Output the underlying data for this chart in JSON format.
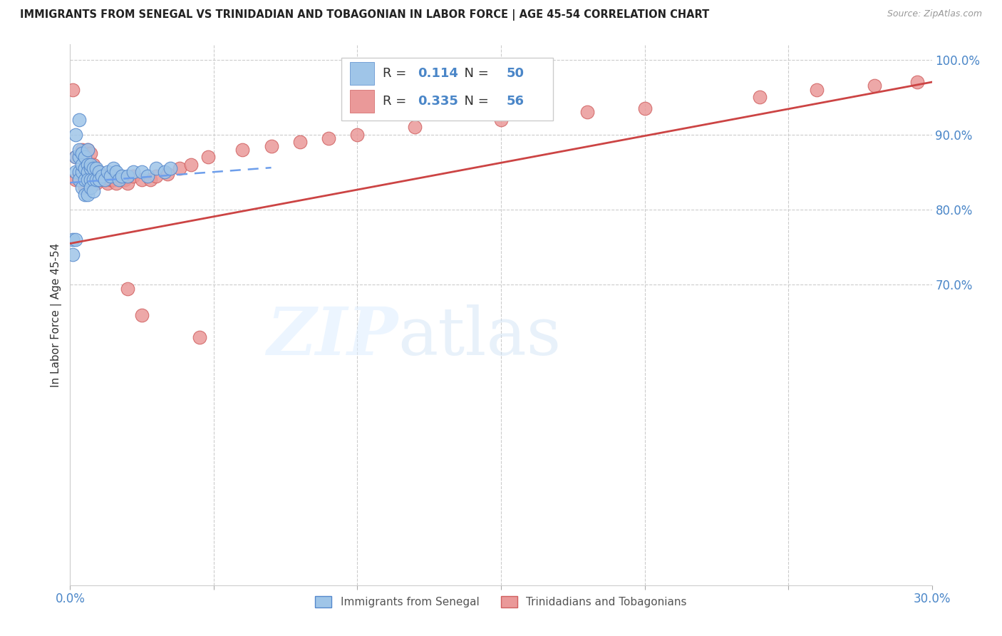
{
  "title": "IMMIGRANTS FROM SENEGAL VS TRINIDADIAN AND TOBAGONIAN IN LABOR FORCE | AGE 45-54 CORRELATION CHART",
  "source": "Source: ZipAtlas.com",
  "ylabel": "In Labor Force | Age 45-54",
  "xlim": [
    0.0,
    0.3
  ],
  "ylim": [
    0.3,
    1.02
  ],
  "xtick_positions": [
    0.0,
    0.05,
    0.1,
    0.15,
    0.2,
    0.25,
    0.3
  ],
  "xticklabels": [
    "0.0%",
    "",
    "",
    "",
    "",
    "",
    "30.0%"
  ],
  "ytick_positions": [
    0.3,
    0.4,
    0.5,
    0.6,
    0.7,
    0.8,
    0.9,
    1.0
  ],
  "yticklabels": [
    "",
    "",
    "",
    "",
    "70.0%",
    "80.0%",
    "90.0%",
    "100.0%"
  ],
  "legend_R_blue": "0.114",
  "legend_N_blue": "50",
  "legend_R_pink": "0.335",
  "legend_N_pink": "56",
  "blue_color": "#9fc5e8",
  "pink_color": "#ea9999",
  "trend_blue_color": "#6d9eeb",
  "trend_pink_color": "#e06666",
  "blue_line_color": "#6d9eeb",
  "pink_line_color": "#cc4444",
  "senegal_x": [
    0.001,
    0.001,
    0.002,
    0.002,
    0.002,
    0.002,
    0.003,
    0.003,
    0.003,
    0.003,
    0.003,
    0.004,
    0.004,
    0.004,
    0.004,
    0.005,
    0.005,
    0.005,
    0.005,
    0.006,
    0.006,
    0.006,
    0.006,
    0.006,
    0.007,
    0.007,
    0.007,
    0.007,
    0.008,
    0.008,
    0.008,
    0.009,
    0.009,
    0.01,
    0.01,
    0.011,
    0.012,
    0.013,
    0.014,
    0.015,
    0.016,
    0.017,
    0.018,
    0.02,
    0.022,
    0.025,
    0.027,
    0.03,
    0.033,
    0.035
  ],
  "senegal_y": [
    0.76,
    0.74,
    0.87,
    0.85,
    0.9,
    0.76,
    0.87,
    0.85,
    0.88,
    0.92,
    0.84,
    0.875,
    0.85,
    0.83,
    0.86,
    0.87,
    0.855,
    0.84,
    0.82,
    0.88,
    0.86,
    0.85,
    0.84,
    0.82,
    0.855,
    0.84,
    0.83,
    0.86,
    0.855,
    0.84,
    0.825,
    0.855,
    0.84,
    0.85,
    0.84,
    0.845,
    0.84,
    0.85,
    0.845,
    0.855,
    0.85,
    0.84,
    0.845,
    0.845,
    0.85,
    0.85,
    0.845,
    0.855,
    0.85,
    0.855
  ],
  "tt_x": [
    0.001,
    0.002,
    0.002,
    0.003,
    0.003,
    0.004,
    0.004,
    0.005,
    0.005,
    0.005,
    0.006,
    0.006,
    0.006,
    0.007,
    0.007,
    0.007,
    0.008,
    0.008,
    0.009,
    0.009,
    0.01,
    0.01,
    0.011,
    0.012,
    0.013,
    0.014,
    0.015,
    0.016,
    0.017,
    0.018,
    0.019,
    0.02,
    0.022,
    0.025,
    0.028,
    0.03,
    0.034,
    0.038,
    0.042,
    0.048,
    0.06,
    0.07,
    0.08,
    0.09,
    0.1,
    0.12,
    0.15,
    0.18,
    0.2,
    0.24,
    0.26,
    0.28,
    0.295,
    0.02,
    0.025,
    0.045
  ],
  "tt_y": [
    0.96,
    0.87,
    0.84,
    0.87,
    0.84,
    0.88,
    0.85,
    0.87,
    0.85,
    0.83,
    0.88,
    0.86,
    0.84,
    0.875,
    0.855,
    0.84,
    0.86,
    0.84,
    0.85,
    0.835,
    0.85,
    0.84,
    0.845,
    0.84,
    0.835,
    0.84,
    0.84,
    0.835,
    0.845,
    0.84,
    0.84,
    0.835,
    0.845,
    0.84,
    0.84,
    0.845,
    0.848,
    0.855,
    0.86,
    0.87,
    0.88,
    0.885,
    0.89,
    0.895,
    0.9,
    0.91,
    0.92,
    0.93,
    0.935,
    0.95,
    0.96,
    0.965,
    0.97,
    0.695,
    0.66,
    0.63
  ],
  "blue_trend_x0": 0.0,
  "blue_trend_y0": 0.836,
  "blue_trend_x1": 0.07,
  "blue_trend_y1": 0.856,
  "pink_trend_x0": 0.0,
  "pink_trend_y0": 0.755,
  "pink_trend_x1": 0.3,
  "pink_trend_y1": 0.97
}
